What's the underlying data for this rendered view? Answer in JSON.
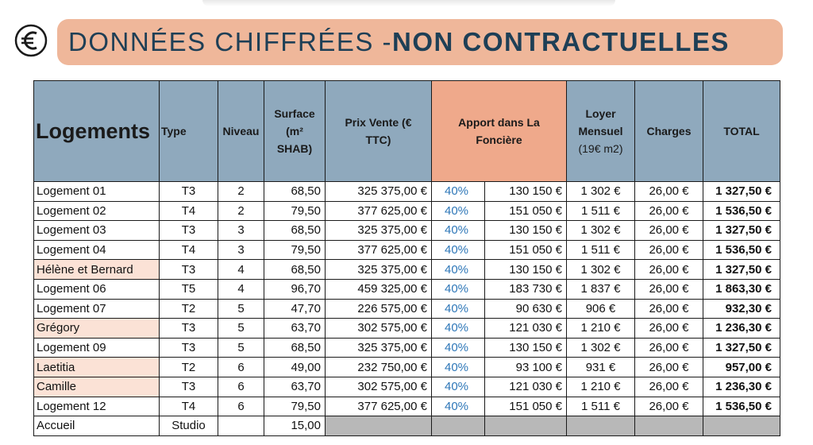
{
  "banner": {
    "light": "DONNÉES CHIFFRÉES - ",
    "bold": "NON CONTRACTUELLES"
  },
  "headers": {
    "logements": "Logements",
    "type": "Type",
    "niveau": "Niveau",
    "surface": "Surface (m² SHAB)",
    "prix": "Prix Vente (€ TTC)",
    "apport": "Apport dans La Foncière",
    "loyer": "Loyer Mensuel",
    "loyer_sub": "(19€ m2)",
    "charges": "Charges",
    "total": "TOTAL"
  },
  "rows": [
    {
      "name": "Logement 01",
      "type": "T3",
      "niveau": "2",
      "surface": "68,50",
      "prix": "325 375,00 €",
      "pct": "40%",
      "apport": "130 150 €",
      "loyer": "1 302 €",
      "charges": "26,00 €",
      "total": "1 327,50 €",
      "named": false
    },
    {
      "name": "Logement 02",
      "type": "T4",
      "niveau": "2",
      "surface": "79,50",
      "prix": "377 625,00 €",
      "pct": "40%",
      "apport": "151 050 €",
      "loyer": "1 511 €",
      "charges": "26,00 €",
      "total": "1 536,50 €",
      "named": false
    },
    {
      "name": "Logement 03",
      "type": "T3",
      "niveau": "3",
      "surface": "68,50",
      "prix": "325 375,00 €",
      "pct": "40%",
      "apport": "130 150 €",
      "loyer": "1 302 €",
      "charges": "26,00 €",
      "total": "1 327,50 €",
      "named": false
    },
    {
      "name": "Logement 04",
      "type": "T4",
      "niveau": "3",
      "surface": "79,50",
      "prix": "377 625,00 €",
      "pct": "40%",
      "apport": "151 050 €",
      "loyer": "1 511 €",
      "charges": "26,00 €",
      "total": "1 536,50 €",
      "named": false
    },
    {
      "name": "Hélène et Bernard",
      "type": "T3",
      "niveau": "4",
      "surface": "68,50",
      "prix": "325 375,00 €",
      "pct": "40%",
      "apport": "130 150 €",
      "loyer": "1 302 €",
      "charges": "26,00 €",
      "total": "1 327,50 €",
      "named": true
    },
    {
      "name": "Logement 06",
      "type": "T5",
      "niveau": "4",
      "surface": "96,70",
      "prix": "459 325,00 €",
      "pct": "40%",
      "apport": "183 730 €",
      "loyer": "1 837 €",
      "charges": "26,00 €",
      "total": "1 863,30 €",
      "named": false
    },
    {
      "name": "Logement 07",
      "type": "T2",
      "niveau": "5",
      "surface": "47,70",
      "prix": "226 575,00 €",
      "pct": "40%",
      "apport": "90 630 €",
      "loyer": "906 €",
      "charges": "26,00 €",
      "total": "932,30 €",
      "named": false
    },
    {
      "name": "Grégory",
      "type": "T3",
      "niveau": "5",
      "surface": "63,70",
      "prix": "302 575,00 €",
      "pct": "40%",
      "apport": "121 030 €",
      "loyer": "1 210 €",
      "charges": "26,00 €",
      "total": "1 236,30 €",
      "named": true
    },
    {
      "name": "Logement 09",
      "type": "T3",
      "niveau": "5",
      "surface": "68,50",
      "prix": "325 375,00 €",
      "pct": "40%",
      "apport": "130 150 €",
      "loyer": "1 302 €",
      "charges": "26,00 €",
      "total": "1 327,50 €",
      "named": false
    },
    {
      "name": "Laetitia",
      "type": "T2",
      "niveau": "6",
      "surface": "49,00",
      "prix": "232 750,00 €",
      "pct": "40%",
      "apport": "93 100 €",
      "loyer": "931 €",
      "charges": "26,00 €",
      "total": "957,00 €",
      "named": true
    },
    {
      "name": "Camille",
      "type": "T3",
      "niveau": "6",
      "surface": "63,70",
      "prix": "302 575,00 €",
      "pct": "40%",
      "apport": "121 030 €",
      "loyer": "1 210 €",
      "charges": "26,00 €",
      "total": "1 236,30 €",
      "named": true
    },
    {
      "name": "Logement 12",
      "type": "T4",
      "niveau": "6",
      "surface": "79,50",
      "prix": "377 625,00 €",
      "pct": "40%",
      "apport": "151 050 €",
      "loyer": "1 511 €",
      "charges": "26,00 €",
      "total": "1 536,50 €",
      "named": false
    }
  ],
  "accueil": {
    "name": "Accueil",
    "type": "Studio",
    "surface": "15,00"
  }
}
